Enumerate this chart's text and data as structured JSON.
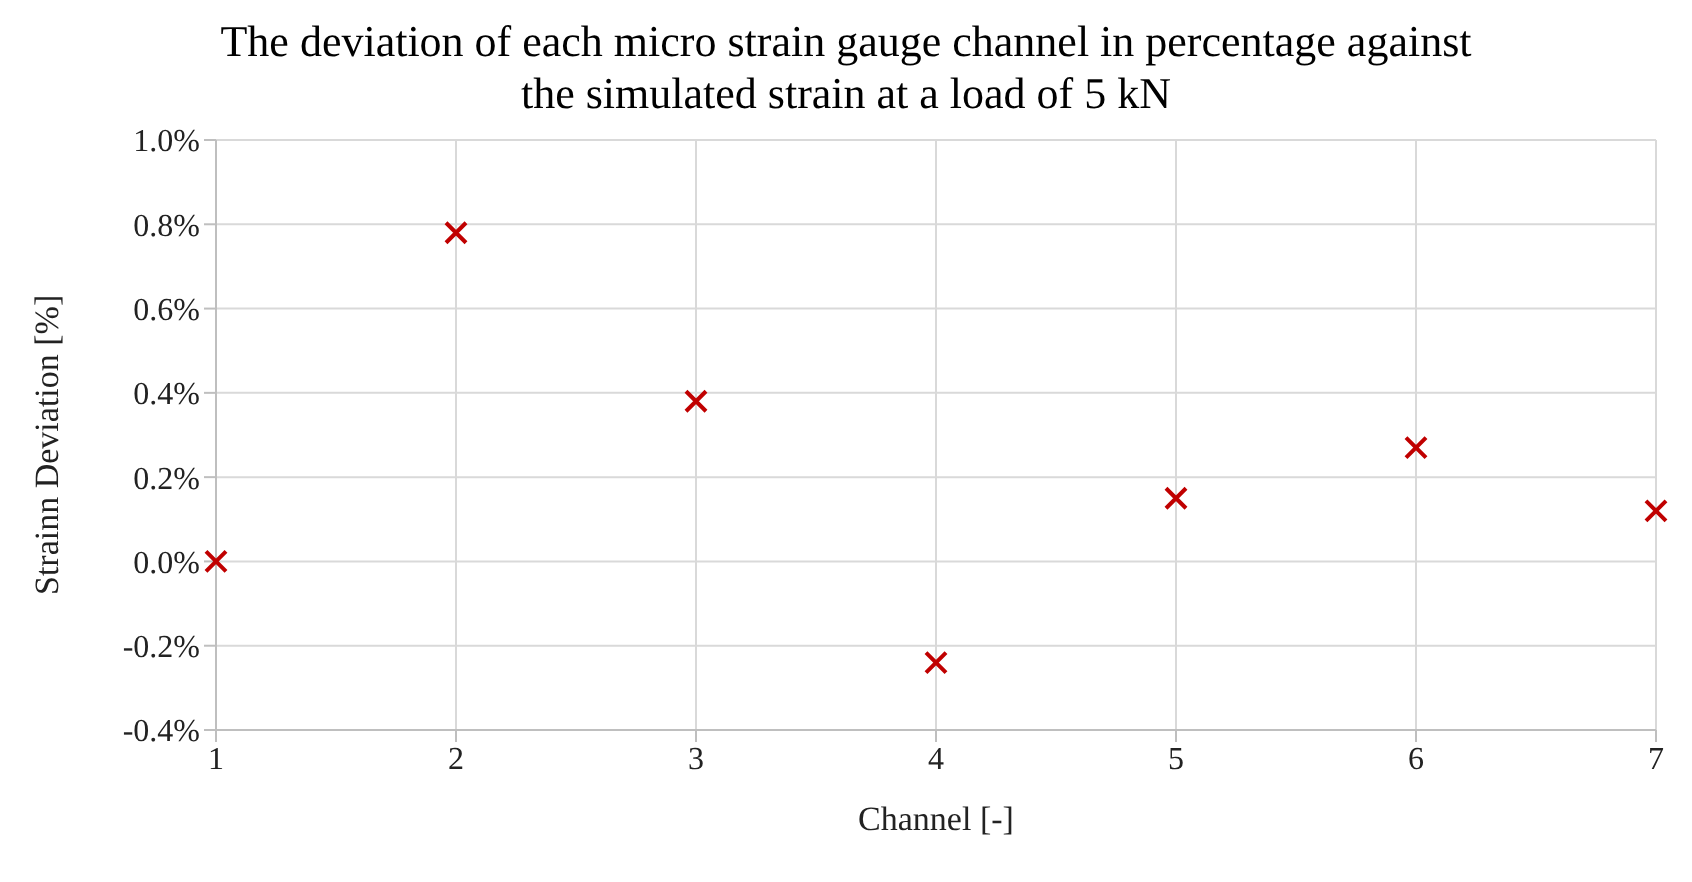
{
  "chart_data": {
    "type": "scatter",
    "title": "The deviation of each micro strain gauge channel in percentage against the simulated strain at a load of 5 kN",
    "xlabel": "Channel [-]",
    "ylabel": "Strainn Deviation [%]",
    "x": [
      1,
      2,
      3,
      4,
      5,
      6,
      7
    ],
    "series": [
      {
        "color": "#c00000",
        "values": [
          0.0,
          0.78,
          0.38,
          -0.24,
          0.15,
          0.27,
          0.12
        ]
      }
    ],
    "xlim": [
      1,
      7
    ],
    "xticks": [
      1,
      2,
      3,
      4,
      5,
      6,
      7
    ],
    "ylim": [
      -0.4,
      1.0
    ],
    "yticks": [
      {
        "value": -0.4,
        "label": "-0.4%"
      },
      {
        "value": -0.2,
        "label": "-0.2%"
      },
      {
        "value": 0,
        "label": "0.0%"
      },
      {
        "value": 0.2,
        "label": "0.2%"
      },
      {
        "value": 0.4,
        "label": "0.4%"
      },
      {
        "value": 0.6,
        "label": "0.6%"
      },
      {
        "value": 0.8,
        "label": "0.8%"
      },
      {
        "value": 1.0,
        "label": "1.0%"
      }
    ],
    "grid": true,
    "marker": "cross"
  }
}
